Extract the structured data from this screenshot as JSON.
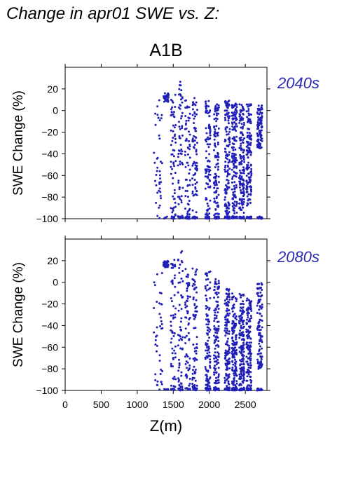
{
  "figure": {
    "title": "Change in apr01 SWE vs. Z:",
    "scenario": "A1B"
  },
  "colors": {
    "points": "#2020b8",
    "period_label": "#2a2ab0",
    "axis": "#000000"
  },
  "chart_data": [
    {
      "type": "scatter",
      "title": "A1B",
      "period_label": "2040s",
      "xlabel": "Z(m)",
      "ylabel": "SWE Change (%)",
      "xlim": [
        0,
        2800
      ],
      "ylim": [
        -100,
        40
      ],
      "xticks": [
        0,
        500,
        1000,
        1500,
        2000,
        2500
      ],
      "yticks": [
        -100,
        -80,
        -60,
        -40,
        -20,
        0,
        20
      ],
      "x_tick_labels_shown": false,
      "grid": false,
      "series": [
        {
          "description_only": "elevation bands (approximate density of point cloud)",
          "elevation_min": 1230,
          "elevation_max": 2760,
          "clusters": [
            {
              "x": 1400,
              "y_range": [
                8,
                16
              ],
              "n": 40
            },
            {
              "x": 1500,
              "y_range": [
                -100,
                20
              ],
              "n": 70
            },
            {
              "x": 1600,
              "y_range": [
                -100,
                28
              ],
              "n": 70
            },
            {
              "x": 1700,
              "y_range": [
                -100,
                22
              ],
              "n": 70
            },
            {
              "x": 1800,
              "y_range": [
                -100,
                12
              ],
              "n": 90
            },
            {
              "x": 1980,
              "y_range": [
                -100,
                10
              ],
              "n": 120
            },
            {
              "x": 2100,
              "y_range": [
                -100,
                8
              ],
              "n": 140
            },
            {
              "x": 2250,
              "y_range": [
                -100,
                10
              ],
              "n": 160
            },
            {
              "x": 2350,
              "y_range": [
                -100,
                8
              ],
              "n": 170
            },
            {
              "x": 2450,
              "y_range": [
                -95,
                6
              ],
              "n": 170
            },
            {
              "x": 2550,
              "y_range": [
                -88,
                6
              ],
              "n": 150
            },
            {
              "x": 2700,
              "y_range": [
                -35,
                5
              ],
              "n": 120
            }
          ]
        }
      ]
    },
    {
      "type": "scatter",
      "title": "",
      "period_label": "2080s",
      "xlabel": "Z(m)",
      "ylabel": "SWE Change (%)",
      "xlim": [
        0,
        2800
      ],
      "ylim": [
        -100,
        40
      ],
      "xticks": [
        0,
        500,
        1000,
        1500,
        2000,
        2500
      ],
      "x_tick_labels": [
        "0",
        "500",
        "1000",
        "1500",
        "2000",
        "2500"
      ],
      "yticks": [
        -100,
        -80,
        -60,
        -40,
        -20,
        0,
        20
      ],
      "grid": false,
      "series": [
        {
          "description_only": "elevation bands (approximate density of point cloud)",
          "elevation_min": 1230,
          "elevation_max": 2760,
          "clusters": [
            {
              "x": 1400,
              "y_range": [
                14,
                20
              ],
              "n": 40
            },
            {
              "x": 1500,
              "y_range": [
                -100,
                22
              ],
              "n": 70
            },
            {
              "x": 1600,
              "y_range": [
                -100,
                29
              ],
              "n": 70
            },
            {
              "x": 1700,
              "y_range": [
                -100,
                18
              ],
              "n": 70
            },
            {
              "x": 1800,
              "y_range": [
                -100,
                14
              ],
              "n": 90
            },
            {
              "x": 1980,
              "y_range": [
                -100,
                10
              ],
              "n": 120
            },
            {
              "x": 2100,
              "y_range": [
                -100,
                4
              ],
              "n": 140
            },
            {
              "x": 2250,
              "y_range": [
                -100,
                -5
              ],
              "n": 160
            },
            {
              "x": 2350,
              "y_range": [
                -100,
                -10
              ],
              "n": 170
            },
            {
              "x": 2450,
              "y_range": [
                -100,
                -10
              ],
              "n": 170
            },
            {
              "x": 2550,
              "y_range": [
                -100,
                -15
              ],
              "n": 150
            },
            {
              "x": 2700,
              "y_range": [
                -80,
                0
              ],
              "n": 120
            }
          ]
        }
      ]
    }
  ]
}
